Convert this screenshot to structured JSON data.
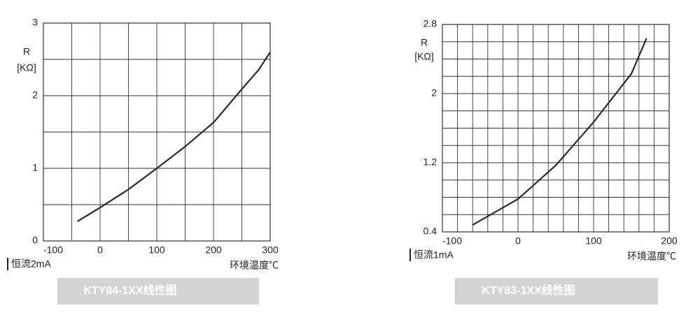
{
  "chart_data": [
    {
      "type": "line",
      "title": "KTY84-1XX线性图",
      "ylabel": "R",
      "yunit": "[KΩ]",
      "xlabel": "环境温度℃",
      "note": "恒流2mA",
      "x": [
        -40,
        0,
        50,
        100,
        150,
        200,
        250,
        280,
        300
      ],
      "values": [
        0.27,
        0.46,
        0.71,
        1.0,
        1.3,
        1.63,
        2.09,
        2.36,
        2.6
      ],
      "color": "#2a2a2a",
      "xlim": [
        -100,
        300
      ],
      "ylim": [
        0,
        3
      ],
      "xticks": [
        -100,
        0,
        100,
        200,
        300
      ],
      "x_minor_ticks": [
        -50,
        50,
        150,
        250
      ],
      "yticks": [
        0,
        1,
        2,
        3
      ],
      "y_minor_ticks": [
        0.5,
        1.5,
        2.5
      ],
      "grid": true
    },
    {
      "type": "line",
      "title": "KTY83-1XX线性图",
      "ylabel": "R",
      "yunit": "[KΩ]",
      "xlabel": "环境温度℃",
      "note": "恒流1mA",
      "x": [
        -60,
        0,
        50,
        100,
        150,
        170
      ],
      "values": [
        0.48,
        0.78,
        1.17,
        1.67,
        2.23,
        2.64
      ],
      "color": "#2a2a2a",
      "xlim": [
        -100,
        200
      ],
      "ylim": [
        0.4,
        2.8
      ],
      "xticks": [
        -100,
        0,
        100,
        200
      ],
      "x_minor_ticks": [
        -80,
        -60,
        -40,
        -20,
        20,
        40,
        60,
        80,
        120,
        140,
        160,
        180
      ],
      "yticks": [
        0.4,
        1.2,
        2,
        2.8
      ],
      "y_minor_ticks": [
        0.6,
        0.8,
        1.0,
        1.4,
        1.6,
        1.8,
        2.2,
        2.4,
        2.6
      ],
      "grid": true
    }
  ]
}
